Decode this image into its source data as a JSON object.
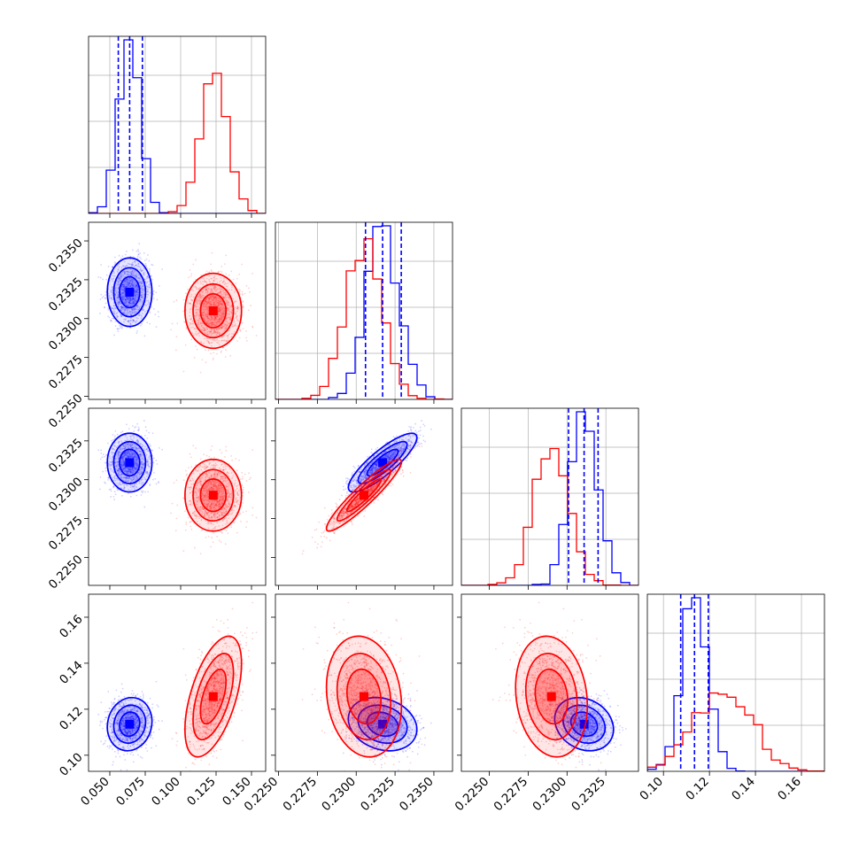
{
  "colors": {
    "series_a": "#0000ff",
    "series_b": "#ff0000",
    "grid": "#b0b0b0",
    "frame": "#000000"
  },
  "chart_data": {
    "type": "corner",
    "parameters": [
      {
        "range": [
          0.035,
          0.16
        ],
        "ticks": [
          0.05,
          0.075,
          0.1,
          0.125,
          0.15
        ],
        "tick_labels": [
          "0.050",
          "0.075",
          "0.100",
          "0.125",
          "0.150"
        ]
      },
      {
        "range": [
          0.2248,
          0.2362
        ],
        "ticks": [
          0.225,
          0.2275,
          0.23,
          0.2325,
          0.235
        ],
        "tick_labels": [
          "0.2250",
          "0.2275",
          "0.2300",
          "0.2325",
          "0.2350"
        ]
      },
      {
        "range": [
          0.2232,
          0.2346
        ],
        "ticks": [
          0.225,
          0.2275,
          0.23,
          0.2325
        ],
        "tick_labels": [
          "0.2250",
          "0.2275",
          "0.2300",
          "0.2325"
        ]
      },
      {
        "range": [
          0.093,
          0.17
        ],
        "ticks": [
          0.1,
          0.12,
          0.14,
          0.16
        ],
        "tick_labels": [
          "0.10",
          "0.12",
          "0.14",
          "0.16"
        ]
      }
    ],
    "series": [
      {
        "color": "#0000ff",
        "mean": [
          0.064,
          0.2317,
          0.2311,
          0.1135
        ],
        "sd": [
          0.0075,
          0.00105,
          0.0009,
          0.0055
        ],
        "corr": {
          "0-1": 0.0,
          "0-2": 0.0,
          "0-3": 0.1,
          "1-2": 0.85,
          "1-3": -0.2,
          "2-3": -0.2
        },
        "quantiles": [
          [
            0.056,
            0.064,
            0.073
          ],
          [
            0.2306,
            0.2317,
            0.2329
          ],
          [
            0.2301,
            0.2311,
            0.232
          ],
          [
            0.1075,
            0.1135,
            0.1195
          ]
        ]
      },
      {
        "color": "#ff0000",
        "mean": [
          0.123,
          0.2305,
          0.229,
          0.1255
        ],
        "sd": [
          0.0095,
          0.00115,
          0.0011,
          0.0125
        ],
        "corr": {
          "0-1": 0.0,
          "0-2": 0.0,
          "0-3": 0.55,
          "1-2": 0.93,
          "1-3": -0.15,
          "2-3": -0.15
        }
      }
    ]
  }
}
